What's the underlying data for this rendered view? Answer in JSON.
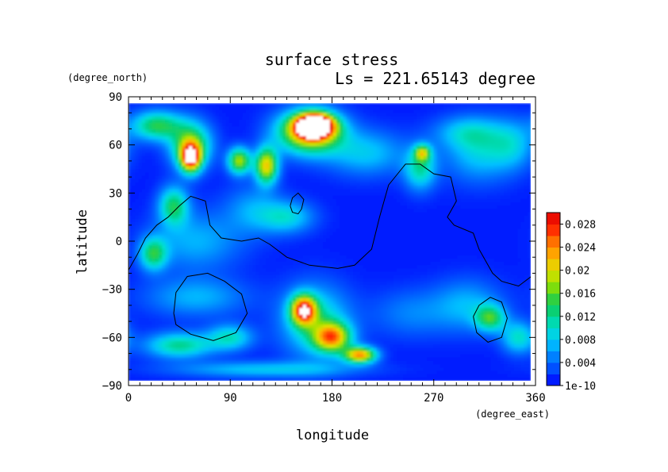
{
  "chart_data": {
    "type": "heatmap",
    "title": "surface stress",
    "subtitle": "Ls = 221.65143 degree",
    "xlabel": "longitude",
    "ylabel": "latitude",
    "x_unit": "(degree_east)",
    "y_unit": "(degree_north)",
    "xlim": [
      0,
      360
    ],
    "ylim": [
      -90,
      90
    ],
    "xticks": [
      0,
      90,
      180,
      270,
      360
    ],
    "yticks": [
      -90,
      -60,
      -30,
      0,
      30,
      60,
      90
    ],
    "xtick_labels": [
      "0",
      "90",
      "180",
      "270",
      "360"
    ],
    "ytick_labels": [
      "−90",
      "−60",
      "−30",
      "0",
      "30",
      "60",
      "90"
    ],
    "colorbar": {
      "min": 0,
      "max": 0.03,
      "labels": [
        "1e-10",
        "0.004",
        "0.008",
        "0.012",
        "0.016",
        "0.02",
        "0.024",
        "0.028"
      ],
      "colors": [
        "#0000ff",
        "#0044ff",
        "#0080ff",
        "#00c0ff",
        "#00e0d0",
        "#00d080",
        "#30d040",
        "#90e000",
        "#e0e000",
        "#ffb000",
        "#ff7000",
        "#ff2000",
        "#e00000"
      ]
    },
    "field_background": 0.001,
    "features": [
      {
        "lon": 165,
        "lat": 72,
        "slon": 16,
        "slat": 7,
        "value": 0.034
      },
      {
        "lon": 160,
        "lat": 68,
        "slon": 28,
        "slat": 13,
        "value": 0.022
      },
      {
        "lon": 55,
        "lat": 52,
        "slon": 9,
        "slat": 9,
        "value": 0.024
      },
      {
        "lon": 55,
        "lat": 60,
        "slon": 18,
        "slat": 14,
        "value": 0.015
      },
      {
        "lon": 122,
        "lat": 47,
        "slon": 10,
        "slat": 11,
        "value": 0.02
      },
      {
        "lon": 98,
        "lat": 50,
        "slon": 10,
        "slat": 8,
        "value": 0.017
      },
      {
        "lon": 25,
        "lat": 72,
        "slon": 22,
        "slat": 9,
        "value": 0.013
      },
      {
        "lon": 40,
        "lat": 22,
        "slon": 13,
        "slat": 12,
        "value": 0.012
      },
      {
        "lon": 22,
        "lat": -8,
        "slon": 12,
        "slat": 10,
        "value": 0.012
      },
      {
        "lon": 258,
        "lat": 45,
        "slon": 14,
        "slat": 13,
        "value": 0.01
      },
      {
        "lon": 260,
        "lat": 55,
        "slon": 7,
        "slat": 5,
        "value": 0.014
      },
      {
        "lon": 140,
        "lat": 15,
        "slon": 24,
        "slat": 10,
        "value": 0.008
      },
      {
        "lon": 210,
        "lat": 55,
        "slon": 35,
        "slat": 14,
        "value": 0.007
      },
      {
        "lon": 310,
        "lat": 55,
        "slon": 30,
        "slat": 18,
        "value": 0.007
      },
      {
        "lon": 300,
        "lat": 68,
        "slon": 30,
        "slat": 10,
        "value": 0.006
      },
      {
        "lon": 340,
        "lat": 60,
        "slon": 20,
        "slat": 15,
        "value": 0.006
      },
      {
        "lon": 60,
        "lat": 0,
        "slon": 40,
        "slat": 18,
        "value": 0.006
      },
      {
        "lon": 155,
        "lat": -43,
        "slon": 11,
        "slat": 9,
        "value": 0.024
      },
      {
        "lon": 180,
        "lat": -60,
        "slon": 16,
        "slat": 9,
        "value": 0.02
      },
      {
        "lon": 205,
        "lat": -71,
        "slon": 14,
        "slat": 5,
        "value": 0.022
      },
      {
        "lon": 165,
        "lat": -50,
        "slon": 30,
        "slat": 22,
        "value": 0.01
      },
      {
        "lon": 45,
        "lat": -65,
        "slon": 30,
        "slat": 8,
        "value": 0.011
      },
      {
        "lon": 90,
        "lat": -60,
        "slon": 20,
        "slat": 8,
        "value": 0.009
      },
      {
        "lon": 320,
        "lat": -48,
        "slon": 13,
        "slat": 8,
        "value": 0.012
      },
      {
        "lon": 345,
        "lat": -60,
        "slon": 15,
        "slat": 10,
        "value": 0.009
      },
      {
        "lon": 300,
        "lat": -40,
        "slon": 30,
        "slat": 16,
        "value": 0.006
      },
      {
        "lon": 120,
        "lat": -80,
        "slon": 80,
        "slat": 5,
        "value": 0.007
      },
      {
        "lon": 60,
        "lat": -35,
        "slon": 45,
        "slat": 12,
        "value": 0.006
      },
      {
        "lon": 250,
        "lat": -45,
        "slon": 35,
        "slat": 15,
        "value": 0.004
      },
      {
        "lon": 110,
        "lat": 20,
        "slon": 25,
        "slat": 15,
        "value": 0.005
      }
    ],
    "contours": [
      [
        [
          0,
          -18
        ],
        [
          8,
          -8
        ],
        [
          15,
          2
        ],
        [
          25,
          10
        ],
        [
          35,
          15
        ],
        [
          45,
          22
        ],
        [
          55,
          28
        ],
        [
          68,
          25
        ],
        [
          72,
          10
        ],
        [
          82,
          2
        ],
        [
          100,
          0
        ],
        [
          115,
          2
        ],
        [
          125,
          -2
        ],
        [
          140,
          -10
        ],
        [
          160,
          -15
        ],
        [
          185,
          -17
        ],
        [
          200,
          -15
        ],
        [
          215,
          -5
        ],
        [
          222,
          15
        ],
        [
          230,
          35
        ],
        [
          245,
          48
        ],
        [
          258,
          48
        ],
        [
          270,
          42
        ],
        [
          285,
          40
        ],
        [
          290,
          25
        ],
        [
          282,
          15
        ],
        [
          288,
          10
        ],
        [
          305,
          5
        ],
        [
          310,
          -5
        ],
        [
          322,
          -20
        ],
        [
          330,
          -25
        ],
        [
          345,
          -28
        ],
        [
          360,
          -20
        ]
      ],
      [
        [
          143,
          22
        ],
        [
          145,
          27
        ],
        [
          150,
          30
        ],
        [
          155,
          26
        ],
        [
          153,
          20
        ],
        [
          150,
          17
        ],
        [
          145,
          18
        ],
        [
          143,
          22
        ]
      ],
      [
        [
          40,
          -45
        ],
        [
          42,
          -32
        ],
        [
          52,
          -22
        ],
        [
          70,
          -20
        ],
        [
          85,
          -25
        ],
        [
          100,
          -33
        ],
        [
          105,
          -45
        ],
        [
          95,
          -57
        ],
        [
          75,
          -62
        ],
        [
          55,
          -58
        ],
        [
          42,
          -52
        ],
        [
          40,
          -45
        ]
      ],
      [
        [
          305,
          -47
        ],
        [
          310,
          -40
        ],
        [
          320,
          -35
        ],
        [
          330,
          -38
        ],
        [
          335,
          -48
        ],
        [
          330,
          -60
        ],
        [
          318,
          -63
        ],
        [
          308,
          -57
        ],
        [
          305,
          -47
        ]
      ]
    ]
  }
}
